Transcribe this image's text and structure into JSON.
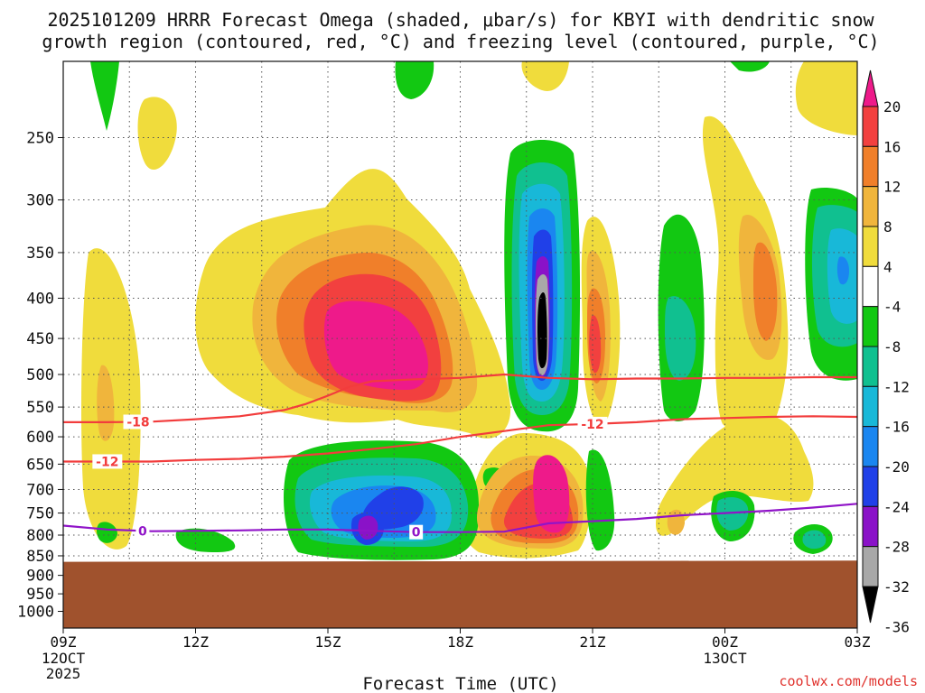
{
  "chart_data": {
    "type": "heatmap",
    "title_lines": [
      "2025101209 HRRR Forecast Omega (shaded, μbar/s) for KBYI with dendritic snow",
      "growth region (contoured, red, °C) and freezing level (contoured, purple, °C)"
    ],
    "xlabel": "Forecast Time (UTC)",
    "ylabel": "",
    "x_range": [
      9,
      27
    ],
    "x_ticks": [
      {
        "value": 9,
        "label": "09Z",
        "sub": [
          "12OCT",
          "2025"
        ]
      },
      {
        "value": 12,
        "label": "12Z",
        "sub": []
      },
      {
        "value": 15,
        "label": "15Z",
        "sub": []
      },
      {
        "value": 18,
        "label": "18Z",
        "sub": []
      },
      {
        "value": 21,
        "label": "21Z",
        "sub": []
      },
      {
        "value": 24,
        "label": "00Z",
        "sub": [
          "13OCT"
        ]
      },
      {
        "value": 27,
        "label": "03Z",
        "sub": []
      }
    ],
    "y_range": [
      1050,
      200
    ],
    "y_ticks": [
      250,
      300,
      350,
      400,
      450,
      500,
      550,
      600,
      650,
      700,
      750,
      800,
      850,
      900,
      950,
      1000
    ],
    "colorbar": {
      "labels": [
        "20",
        "16",
        "12",
        "8",
        "4",
        "-4",
        "-8",
        "-12",
        "-16",
        "-20",
        "-24",
        "-28",
        "-32",
        "-36"
      ],
      "bands": [
        "#ee1a8a",
        "#f2403f",
        "#f07f2a",
        "#f0b53c",
        "#f0dc3c",
        "#ffffff",
        "#12c812",
        "#10c090",
        "#18b8d8",
        "#1a86f0",
        "#2040e8",
        "#8a12c8",
        "#a8a8a8",
        "#000000"
      ]
    },
    "shaded_cells": [
      {
        "t": 10.0,
        "p": 540,
        "v": 8
      },
      {
        "t": 16.3,
        "p": 440,
        "v": 20
      },
      {
        "t": 15.6,
        "p": 400,
        "v": 16
      },
      {
        "t": 16.8,
        "p": 500,
        "v": 12
      },
      {
        "t": 20.0,
        "p": 450,
        "v": -36
      },
      {
        "t": 20.0,
        "p": 380,
        "v": -28
      },
      {
        "t": 20.0,
        "p": 520,
        "v": -24
      },
      {
        "t": 16.0,
        "p": 780,
        "v": -24
      },
      {
        "t": 16.3,
        "p": 740,
        "v": -20
      },
      {
        "t": 20.1,
        "p": 700,
        "v": 20
      },
      {
        "t": 20.1,
        "p": 780,
        "v": 16
      },
      {
        "t": 21.1,
        "p": 450,
        "v": 12
      },
      {
        "t": 23.8,
        "p": 480,
        "v": -8
      },
      {
        "t": 26.1,
        "p": 380,
        "v": -12
      },
      {
        "t": 25.0,
        "p": 400,
        "v": 12
      },
      {
        "t": 24.0,
        "p": 760,
        "v": -12
      },
      {
        "t": 26.1,
        "p": 820,
        "v": -8
      },
      {
        "t": 22.2,
        "p": 780,
        "v": 8
      }
    ],
    "contours": [
      {
        "name": "-18 °C",
        "label": "-18",
        "color": "#f23c3c",
        "x": [
          9,
          10,
          11,
          12,
          13,
          14,
          14.5,
          15,
          15.5,
          16,
          17,
          18,
          19,
          20,
          21,
          22,
          23,
          24,
          25,
          26,
          27
        ],
        "y": [
          575,
          575,
          574,
          570,
          565,
          555,
          545,
          532,
          518,
          510,
          507,
          505,
          500,
          505,
          507,
          506,
          506,
          505,
          505,
          504,
          504
        ]
      },
      {
        "name": "-12 °C",
        "label": "-12",
        "color": "#f23c3c",
        "x": [
          9,
          10,
          11,
          12,
          13,
          14,
          15,
          16,
          17,
          18,
          19,
          20,
          21,
          22,
          23,
          24,
          25,
          26,
          27
        ],
        "y": [
          645,
          645,
          645,
          642,
          640,
          636,
          630,
          622,
          613,
          600,
          590,
          580,
          578,
          575,
          570,
          568,
          566,
          565,
          566
        ]
      },
      {
        "name": "0 °C",
        "label": "0",
        "color": "#9014c8",
        "x": [
          9,
          10,
          11,
          12,
          13,
          14,
          15,
          16,
          17,
          18,
          19,
          20,
          21,
          22,
          23,
          24,
          25,
          26,
          27
        ],
        "y": [
          778,
          787,
          791,
          790,
          789,
          787,
          787,
          790,
          793,
          793,
          792,
          773,
          768,
          763,
          755,
          750,
          745,
          738,
          730
        ]
      }
    ],
    "terrain": {
      "color": "#a0522d",
      "pressure_left": 865,
      "pressure_right": 862
    }
  },
  "credit": "coolwx.com/models"
}
